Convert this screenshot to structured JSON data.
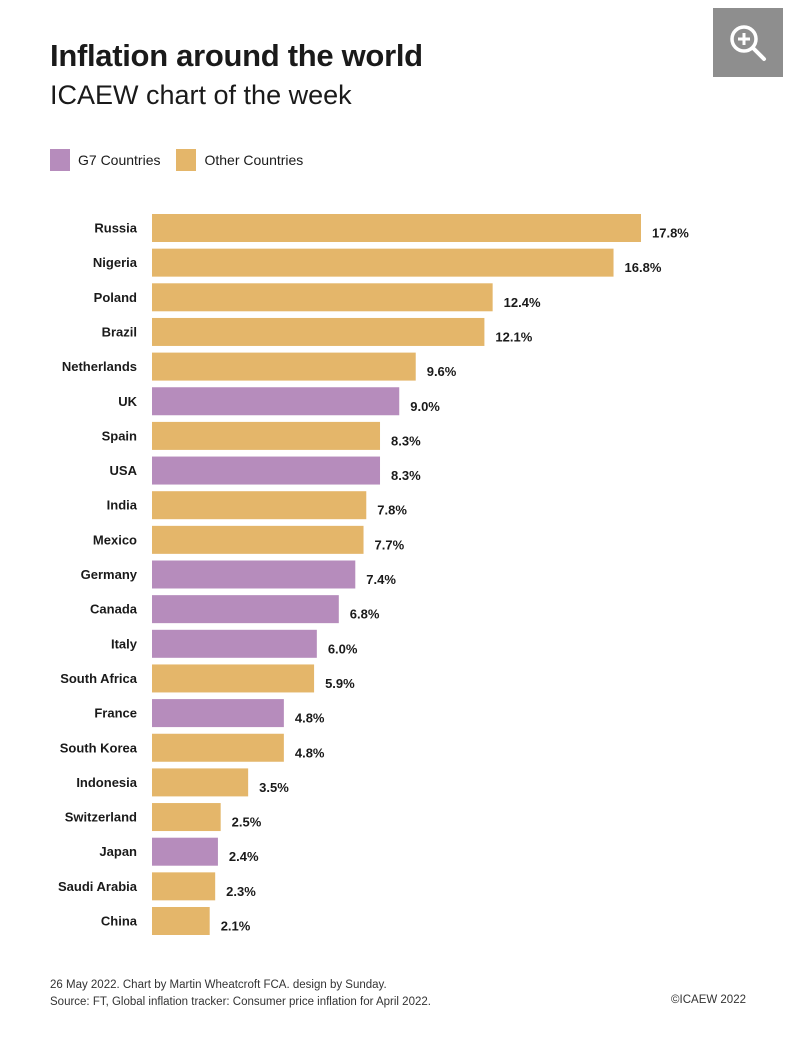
{
  "header": {
    "title": "Inflation around the world",
    "subtitle": "ICAEW chart of the week"
  },
  "zoom_button": {
    "icon": "zoom-in-icon"
  },
  "legend": {
    "g7_label": "G7 Countries",
    "other_label": "Other Countries"
  },
  "colors": {
    "g7": "#b68cbc",
    "other": "#e4b66a"
  },
  "chart_data": {
    "type": "bar",
    "orientation": "horizontal",
    "title": "Inflation around the world",
    "subtitle": "ICAEW chart of the week",
    "unit": "%",
    "categories": [
      "Russia",
      "Nigeria",
      "Poland",
      "Brazil",
      "Netherlands",
      "UK",
      "Spain",
      "USA",
      "India",
      "Mexico",
      "Germany",
      "Canada",
      "Italy",
      "South Africa",
      "France",
      "South Korea",
      "Indonesia",
      "Switzerland",
      "Japan",
      "Saudi Arabia",
      "China"
    ],
    "values": [
      17.8,
      16.8,
      12.4,
      12.1,
      9.6,
      9.0,
      8.3,
      8.3,
      7.8,
      7.7,
      7.4,
      6.8,
      6.0,
      5.9,
      4.8,
      4.8,
      3.5,
      2.5,
      2.4,
      2.3,
      2.1
    ],
    "value_labels": [
      "17.8%",
      "16.8%",
      "12.4%",
      "12.1%",
      "9.6%",
      "9.0%",
      "8.3%",
      "8.3%",
      "7.8%",
      "7.7%",
      "7.4%",
      "6.8%",
      "6.0%",
      "5.9%",
      "4.8%",
      "4.8%",
      "3.5%",
      "2.5%",
      "2.4%",
      "2.3%",
      "2.1%"
    ],
    "groups": [
      "Other Countries",
      "Other Countries",
      "Other Countries",
      "Other Countries",
      "Other Countries",
      "G7 Countries",
      "Other Countries",
      "G7 Countries",
      "Other Countries",
      "Other Countries",
      "G7 Countries",
      "G7 Countries",
      "G7 Countries",
      "Other Countries",
      "G7 Countries",
      "Other Countries",
      "Other Countries",
      "Other Countries",
      "G7 Countries",
      "Other Countries",
      "Other Countries"
    ],
    "xlim": [
      0,
      17.8
    ],
    "grid": false,
    "legend_position": "top-left"
  },
  "footer": {
    "line1": "26 May 2022.   Chart by Martin Wheatcroft FCA. design by Sunday.",
    "line2": "Source: FT, Global inflation tracker: Consumer price inflation for April 2022.",
    "copyright": "©ICAEW 2022"
  }
}
